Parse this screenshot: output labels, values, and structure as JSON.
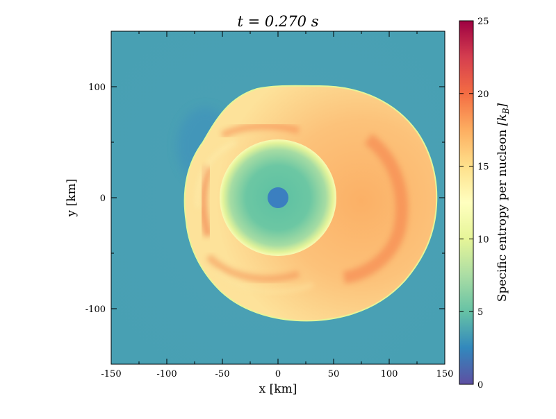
{
  "chart_data": {
    "type": "heatmap",
    "title": "t = 0.270 s",
    "xlabel": "x [km]",
    "ylabel": "y [km]",
    "xlim": [
      -150,
      150
    ],
    "ylim": [
      -150,
      150
    ],
    "x_ticks": [
      -150,
      -100,
      -50,
      0,
      50,
      100,
      150
    ],
    "y_ticks": [
      -100,
      0,
      100
    ],
    "grid": false,
    "colorbar": {
      "label": "Specific entropy per nucleon [k_B]",
      "label_main": "Specific entropy per nucleon",
      "label_unit": "[k",
      "label_unit_sub": "B",
      "label_unit_close": "]",
      "range": [
        0,
        25
      ],
      "ticks": [
        0,
        5,
        10,
        15,
        20,
        25
      ],
      "colormap": "Spectral_r",
      "colormap_stops": [
        "#5e4fa2",
        "#3288bd",
        "#66c2a5",
        "#abdda4",
        "#e6f598",
        "#ffffbf",
        "#fee08b",
        "#fdae61",
        "#f46d43",
        "#d53e4f",
        "#9e0142"
      ]
    },
    "regions": [
      {
        "name": "proto-neutron star core",
        "center_km": [
          0,
          0
        ],
        "radius_km": 9,
        "entropy": 3
      },
      {
        "name": "neutron star envelope",
        "center_km": [
          0,
          0
        ],
        "radius_km": 52,
        "entropy_inner": 6,
        "entropy_outer": 9
      },
      {
        "name": "shock-heated bubble",
        "center_km": [
          38,
          0
        ],
        "extent_x_km": [
          -83,
          143
        ],
        "extent_y_km": [
          -110,
          100
        ],
        "entropy_range": [
          13,
          20
        ]
      },
      {
        "name": "unshocked pre-shock matter",
        "entropy": 4
      }
    ]
  }
}
